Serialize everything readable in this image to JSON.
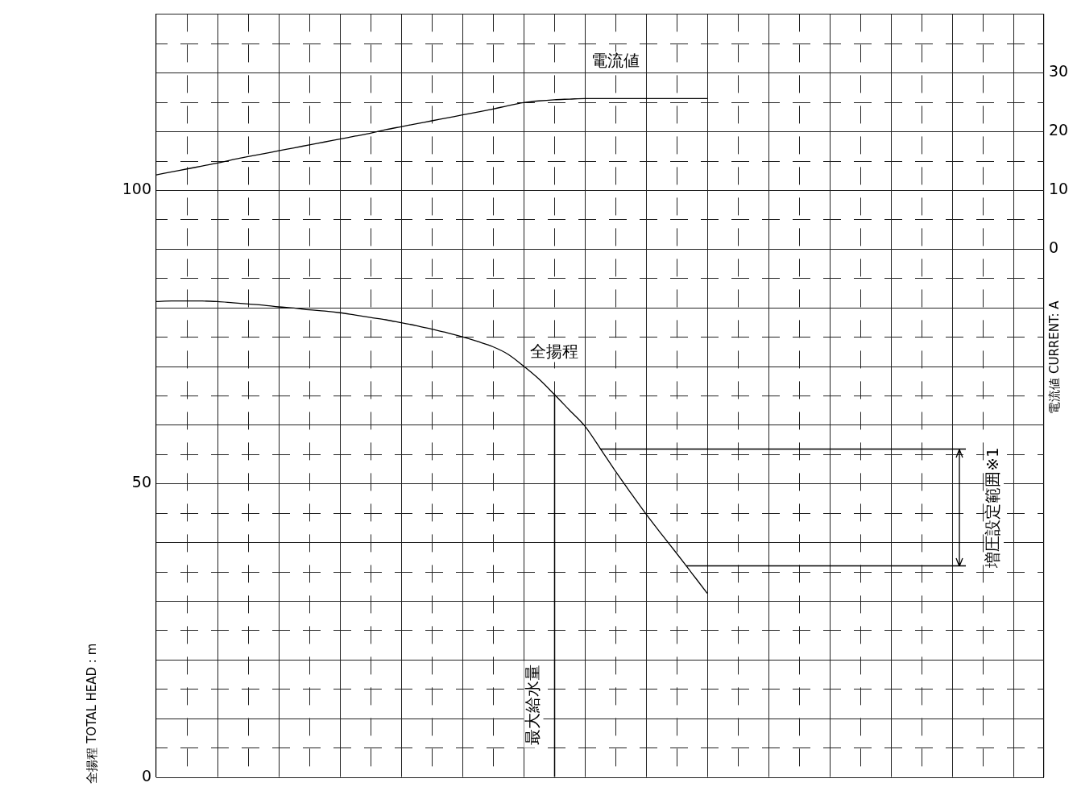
{
  "chart_data": {
    "type": "line",
    "categories": [
      null,
      null,
      null,
      null,
      null,
      null,
      null,
      null,
      null,
      null,
      null,
      null,
      null,
      null,
      null,
      null,
      null,
      null,
      null,
      null,
      null,
      null,
      null,
      null,
      null,
      null,
      null,
      null,
      null,
      null,
      null,
      null,
      null,
      null,
      null,
      null,
      null,
      null,
      null,
      null,
      null,
      null,
      null,
      null,
      null,
      null,
      null,
      null,
      null,
      null,
      null,
      null,
      null,
      null,
      null,
      null,
      null,
      null,
      null
    ],
    "series": [
      {
        "name": "電流値",
        "color": "#000000",
        "axis": "y2",
        "values": [
          12.6,
          13.1,
          13.6,
          14.1,
          14.6,
          15.2,
          15.7,
          16.2,
          16.7,
          17.2,
          17.7,
          18.2,
          18.7,
          19.2,
          19.7,
          20.3,
          20.8,
          21.3,
          21.8,
          22.3,
          22.8,
          23.3,
          23.8,
          24.4,
          24.9,
          25.2,
          25.4,
          25.5,
          25.6,
          25.6,
          25.6,
          25.6,
          25.6,
          25.6,
          25.6,
          25.6,
          25.6,
          null,
          null,
          null,
          null,
          null,
          null,
          null,
          null,
          null,
          null,
          null,
          null,
          null,
          null,
          null,
          null,
          null,
          null,
          null,
          null,
          null,
          null
        ]
      },
      {
        "name": "全揚程",
        "color": "#000000",
        "values": [
          81.0,
          81.1,
          81.1,
          81.1,
          81.0,
          80.8,
          80.6,
          80.4,
          80.1,
          79.9,
          79.6,
          79.4,
          79.1,
          78.7,
          78.3,
          77.9,
          77.4,
          76.9,
          76.3,
          75.7,
          75.0,
          74.2,
          73.3,
          72.0,
          70.0,
          67.8,
          65.2,
          62.5,
          59.8,
          56.0,
          52.1,
          48.4,
          44.8,
          41.4,
          38.1,
          34.7,
          31.3,
          null,
          null,
          null,
          null,
          null,
          null,
          null,
          null,
          null,
          null,
          null,
          null,
          null,
          null,
          null,
          null,
          null,
          null,
          null,
          null,
          null,
          null
        ]
      }
    ],
    "ylabel": "全揚程 TOTAL HEAD : m",
    "y2label": "電流値 CURRENT: A",
    "ylim": [
      0,
      130
    ],
    "yticks": [
      0,
      {
        "value": 5,
        "label": null
      },
      {
        "value": 10,
        "label": null
      },
      {
        "value": 15,
        "label": null
      },
      {
        "value": 20,
        "label": null
      },
      {
        "value": 25,
        "label": null
      },
      {
        "value": 30,
        "label": null
      },
      {
        "value": 35,
        "label": null
      },
      {
        "value": 40,
        "label": null
      },
      {
        "value": 45,
        "label": null
      },
      50,
      {
        "value": 55,
        "label": null
      },
      {
        "value": 60,
        "label": null
      },
      {
        "value": 65,
        "label": null
      },
      {
        "value": 70,
        "label": null
      },
      {
        "value": 75,
        "label": null
      },
      {
        "value": 80,
        "label": null
      },
      {
        "value": 85,
        "label": null
      },
      {
        "value": 90,
        "label": null
      },
      {
        "value": 95,
        "label": null
      },
      100,
      {
        "value": 105,
        "label": null
      },
      {
        "value": 110,
        "label": null
      },
      {
        "value": 115,
        "label": null
      },
      {
        "value": 120,
        "label": null
      },
      {
        "value": 125,
        "label": null
      },
      {
        "value": 130,
        "label": null
      }
    ],
    "y2lim": [
      -90,
      40
    ],
    "y2ticks": [
      0,
      10,
      20,
      30
    ],
    "ref_lines": [
      {
        "axis": "y",
        "value": 56,
        "color": "#000000",
        "line_style": "solid"
      },
      {
        "axis": "y",
        "value": 36,
        "color": "#000000",
        "line_style": "solid"
      }
    ],
    "annotations": [
      "最大給水量",
      "増圧設定範囲※1"
    ],
    "grid": true,
    "marker": "none",
    "line_style": "solid"
  }
}
